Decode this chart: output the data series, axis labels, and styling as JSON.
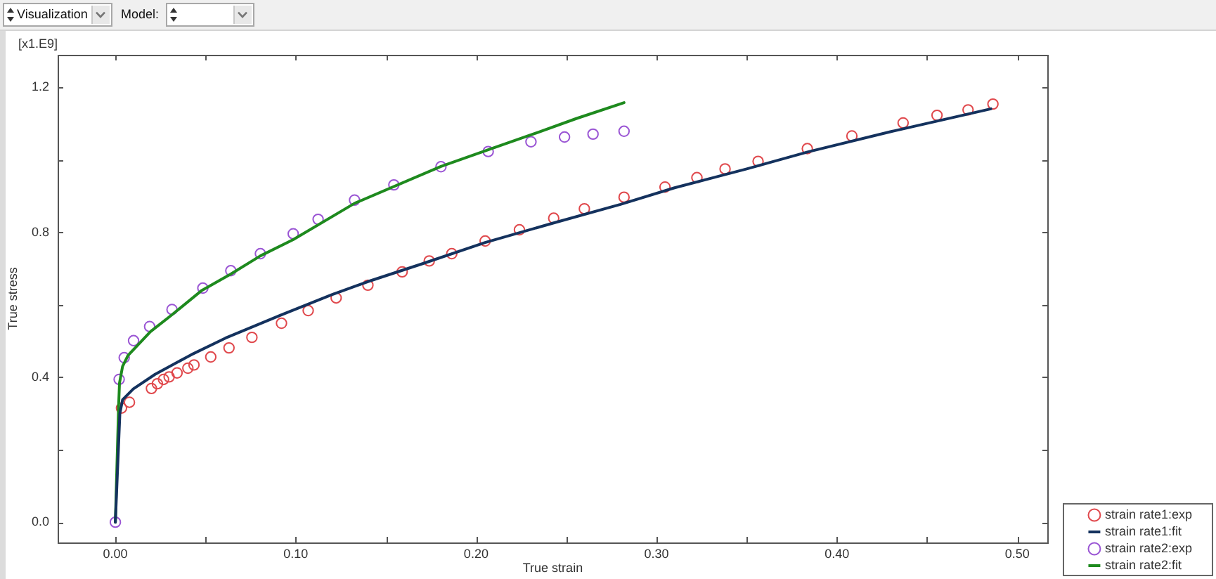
{
  "chart_data": {
    "type": "scatter",
    "xlabel": "True strain",
    "ylabel": "True stress",
    "annotations": [
      "[x1.E9]",
      "Visualization",
      "Model:"
    ],
    "xlim": [
      -0.032,
      0.517
    ],
    "ylim": [
      -0.056,
      1.29
    ],
    "xticks": [
      {
        "value": 0,
        "label": "0.00"
      },
      {
        "value": 0.05,
        "label": null
      },
      {
        "value": 0.1,
        "label": "0.10"
      },
      {
        "value": 0.15,
        "label": null
      },
      {
        "value": 0.2,
        "label": "0.20"
      },
      {
        "value": 0.25,
        "label": null
      },
      {
        "value": 0.3,
        "label": "0.30"
      },
      {
        "value": 0.35,
        "label": null
      },
      {
        "value": 0.4,
        "label": "0.40"
      },
      {
        "value": 0.45,
        "label": null
      },
      {
        "value": 0.5,
        "label": "0.50"
      }
    ],
    "yticks": [
      {
        "value": 0,
        "label": "0.0"
      },
      {
        "value": 0.2,
        "label": null
      },
      0.4,
      {
        "value": 0.6,
        "label": null
      },
      0.8,
      {
        "value": 1,
        "label": null
      },
      1.2
    ],
    "marker": "circle",
    "legend": "bottom right",
    "series": [
      {
        "name": "strain rate1:exp",
        "type": "scatter",
        "color": "#e0484c",
        "x": [
          0.0034,
          0.0078,
          0.02,
          0.0233,
          0.0267,
          0.0298,
          0.0342,
          0.0402,
          0.0436,
          0.0529,
          0.063,
          0.0757,
          0.0921,
          0.1069,
          0.1224,
          0.14,
          0.159,
          0.174,
          0.1865,
          0.205,
          0.224,
          0.243,
          0.26,
          0.282,
          0.3047,
          0.3224,
          0.338,
          0.3563,
          0.3836,
          0.4083,
          0.4367,
          0.4555,
          0.4727,
          0.4865
        ],
        "values": [
          0.315,
          0.331,
          0.369,
          0.382,
          0.394,
          0.401,
          0.412,
          0.425,
          0.434,
          0.456,
          0.481,
          0.51,
          0.549,
          0.584,
          0.619,
          0.654,
          0.691,
          0.721,
          0.741,
          0.776,
          0.807,
          0.839,
          0.865,
          0.897,
          0.925,
          0.951,
          0.975,
          0.996,
          1.031,
          1.066,
          1.102,
          1.123,
          1.138,
          1.154
        ]
      },
      {
        "name": "strain rate1:fit",
        "type": "line",
        "marker": "none",
        "color": "#14325e",
        "x": [
          0,
          0.0025,
          0.004,
          0.01,
          0.022,
          0.042,
          0.061,
          0.092,
          0.12,
          0.14,
          0.17,
          0.205,
          0.243,
          0.28,
          0.31,
          0.35,
          0.384,
          0.43,
          0.4854
        ],
        "values": [
          0,
          0.3,
          0.338,
          0.368,
          0.408,
          0.462,
          0.508,
          0.572,
          0.628,
          0.664,
          0.713,
          0.772,
          0.826,
          0.877,
          0.923,
          0.975,
          1.022,
          1.078,
          1.141
        ]
      },
      {
        "name": "strain rate2:exp",
        "type": "scatter",
        "color": "#9a55d4",
        "x": [
          0,
          0.0021,
          0.0049,
          0.0101,
          0.019,
          0.0314,
          0.0485,
          0.064,
          0.0804,
          0.0986,
          0.1124,
          0.1326,
          0.1544,
          0.1805,
          0.2067,
          0.2304,
          0.249,
          0.2648,
          0.282
        ],
        "values": [
          0,
          0.394,
          0.454,
          0.501,
          0.54,
          0.587,
          0.646,
          0.694,
          0.741,
          0.796,
          0.836,
          0.889,
          0.931,
          0.981,
          1.023,
          1.05,
          1.063,
          1.071,
          1.079
        ]
      },
      {
        "name": "strain rate2:fit",
        "type": "line",
        "marker": "none",
        "color": "#1e8a1e",
        "x": [
          0,
          0.0018,
          0.0023,
          0.004,
          0.007,
          0.0195,
          0.031,
          0.048,
          0.064,
          0.0804,
          0.0986,
          0.1326,
          0.1805,
          0.2067,
          0.2309,
          0.2555,
          0.282
        ],
        "values": [
          0,
          0.32,
          0.384,
          0.43,
          0.46,
          0.526,
          0.571,
          0.64,
          0.685,
          0.735,
          0.78,
          0.88,
          0.982,
          1.028,
          1.07,
          1.114,
          1.158
        ]
      }
    ]
  }
}
